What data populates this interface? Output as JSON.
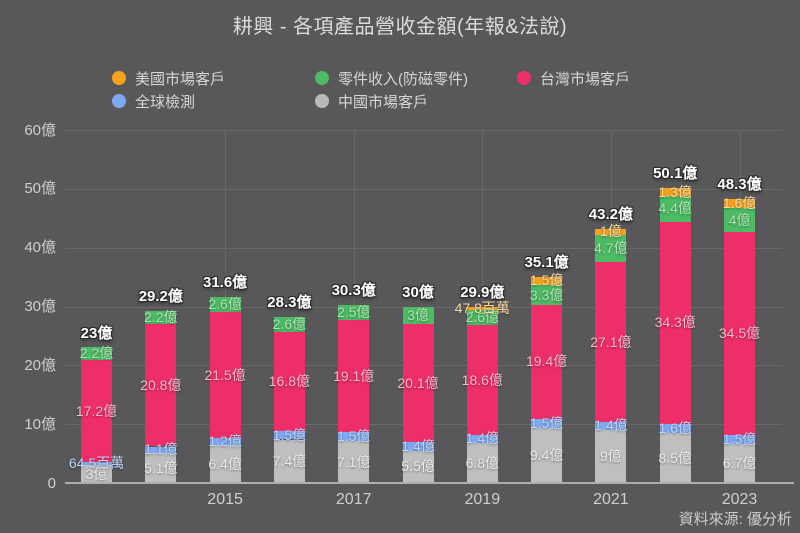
{
  "title": "耕興 - 各項產品營收金額(年報&法說)",
  "source": "資料來源: 優分析",
  "legend": [
    {
      "label": "美國市場客戶",
      "color": "#f6a21c",
      "row": 0,
      "col": 0
    },
    {
      "label": "零件收入(防磁零件)",
      "color": "#4dba64",
      "row": 0,
      "col": 1
    },
    {
      "label": "台灣市場客戶",
      "color": "#ee2e68",
      "row": 0,
      "col": 2
    },
    {
      "label": "全球檢測",
      "color": "#7fa8f2",
      "row": 1,
      "col": 0
    },
    {
      "label": "中國市場客戶",
      "color": "#b9b9b9",
      "row": 1,
      "col": 1
    }
  ],
  "chart_data": {
    "type": "bar",
    "stacked": true,
    "title": "耕興 - 各項產品營收金額(年報&法說)",
    "unit": "億",
    "ylim": [
      0,
      60
    ],
    "yticks": [
      "0",
      "10億",
      "20億",
      "30億",
      "40億",
      "50億",
      "60億"
    ],
    "years": [
      "2013",
      "2014",
      "2015",
      "2016",
      "2017",
      "2018",
      "2019",
      "2020",
      "2021",
      "2022",
      "2023"
    ],
    "xticks": [
      "2015",
      "2017",
      "2019",
      "2021",
      "2023"
    ],
    "grid": true,
    "legend_position": "top",
    "series": [
      {
        "key": "china",
        "name": "中國市場客戶",
        "color": "#bfbfbf",
        "label_color": "#ebebeb",
        "values": [
          3,
          5.1,
          6.4,
          7.4,
          7.1,
          5.5,
          6.8,
          9.4,
          9,
          8.5,
          6.7
        ],
        "labels": [
          "3億",
          "5.1億",
          "6.4億",
          "7.4億",
          "7.1億",
          "5.5億",
          "6.8億",
          "9.4億",
          "9億",
          "8.5億",
          "6.7億"
        ]
      },
      {
        "key": "global",
        "name": "全球檢測",
        "color": "#7fa8f2",
        "label_color": "#bdd5f8",
        "values": [
          0.645,
          1.1,
          1.2,
          1.5,
          1.5,
          1.4,
          1.4,
          1.5,
          1.4,
          1.6,
          1.5
        ],
        "labels": [
          "64.5百萬",
          "1.1億",
          "1.2億",
          "1.5億",
          "1.5億",
          "1.4億",
          "1.4億",
          "1.5億",
          "1.4億",
          "1.6億",
          "1.5億"
        ]
      },
      {
        "key": "taiwan",
        "name": "台灣市場客戶",
        "color": "#ee2e68",
        "label_color": "#f9bacf",
        "values": [
          17.2,
          20.8,
          21.5,
          16.8,
          19.1,
          20.1,
          18.6,
          19.4,
          27.1,
          34.3,
          34.5
        ],
        "labels": [
          "17.2億",
          "20.8億",
          "21.5億",
          "16.8億",
          "19.1億",
          "20.1億",
          "18.6億",
          "19.4億",
          "27.1億",
          "34.3億",
          "34.5億"
        ]
      },
      {
        "key": "parts",
        "name": "零件收入(防磁零件)",
        "color": "#4dba64",
        "label_color": "#aee5b4",
        "values": [
          2.2,
          2.2,
          2.6,
          2.6,
          2.5,
          3,
          2.6,
          3.3,
          4.7,
          4.4,
          4
        ],
        "labels": [
          "2.2億",
          "2.2億",
          "2.6億",
          "2.6億",
          "2.5億",
          "3億",
          "2.6億",
          "3.3億",
          "4.7億",
          "4.4億",
          "4億"
        ]
      },
      {
        "key": "us",
        "name": "美國市場客戶",
        "color": "#f6a21c",
        "label_color": "#f8dba6",
        "values": [
          0,
          0,
          0,
          0,
          0,
          0,
          0.478,
          1.5,
          1,
          1.3,
          1.6
        ],
        "labels": [
          "",
          "",
          "",
          "",
          "",
          "",
          "47.8百萬",
          "1.5億",
          "1億",
          "1.3億",
          "1.6億"
        ]
      }
    ],
    "totals": {
      "values": [
        23,
        29.2,
        31.6,
        28.3,
        30.3,
        30,
        29.9,
        35.1,
        43.2,
        50.1,
        48.3
      ],
      "labels": [
        "23億",
        "29.2億",
        "31.6億",
        "28.3億",
        "30.3億",
        "30億",
        "29.9億",
        "35.1億",
        "43.2億",
        "50.1億",
        "48.3億"
      ]
    }
  }
}
